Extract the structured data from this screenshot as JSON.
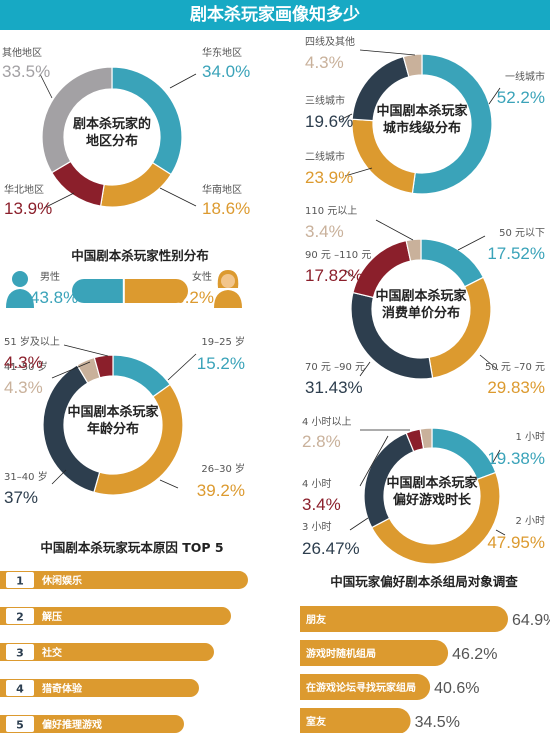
{
  "title": "剧本杀玩家画像知多少",
  "colors": {
    "teal": "#3aa3b9",
    "orange": "#dc9a2f",
    "navy": "#2d3e4e",
    "maroon": "#8b1f2b",
    "gray": "#a3a1a4",
    "beige": "#c9b19b",
    "bar": "#dc9a2f"
  },
  "chart_data": [
    {
      "type": "pie",
      "title": "剧本杀玩家的地区分布",
      "title_lines": [
        "剧本杀玩家的",
        "地区分布"
      ],
      "slices": [
        {
          "label": "华东地区",
          "pct": "34.0%",
          "value": 34.0,
          "color": "#3aa3b9"
        },
        {
          "label": "华南地区",
          "pct": "18.6%",
          "value": 18.6,
          "color": "#dc9a2f"
        },
        {
          "label": "华北地区",
          "pct": "13.9%",
          "value": 13.9,
          "color": "#8b1f2b"
        },
        {
          "label": "其他地区",
          "pct": "33.5%",
          "value": 33.5,
          "color": "#a3a1a4"
        }
      ]
    },
    {
      "type": "pie",
      "title": "中国剧本杀玩家城市线级分布",
      "title_lines": [
        "中国剧本杀玩家",
        "城市线级分布"
      ],
      "slices": [
        {
          "label": "一线城市",
          "pct": "52.2%",
          "value": 52.2,
          "color": "#3aa3b9"
        },
        {
          "label": "二线城市",
          "pct": "23.9%",
          "value": 23.9,
          "color": "#dc9a2f"
        },
        {
          "label": "三线城市",
          "pct": "19.6%",
          "value": 19.6,
          "color": "#2d3e4e"
        },
        {
          "label": "四线及其他",
          "pct": "4.3%",
          "value": 4.3,
          "color": "#c9b19b"
        }
      ]
    },
    {
      "type": "bar",
      "title": "中国剧本杀玩家性别分布",
      "slices": [
        {
          "label": "男性",
          "pct": "43.8%",
          "value": 43.8,
          "color": "#3aa3b9"
        },
        {
          "label": "女性",
          "pct": "56.2%",
          "value": 56.2,
          "color": "#dc9a2f"
        }
      ]
    },
    {
      "type": "pie",
      "title": "中国剧本杀玩家消费单价分布",
      "title_lines": [
        "中国剧本杀玩家",
        "消费单价分布"
      ],
      "slices": [
        {
          "label": "50 元以下",
          "pct": "17.52%",
          "value": 17.52,
          "color": "#3aa3b9"
        },
        {
          "label": "50 元 –70 元",
          "pct": "29.83%",
          "value": 29.83,
          "color": "#dc9a2f"
        },
        {
          "label": "70 元 –90 元",
          "pct": "31.43%",
          "value": 31.43,
          "color": "#2d3e4e"
        },
        {
          "label": "90 元 –110 元",
          "pct": "17.82%",
          "value": 17.82,
          "color": "#8b1f2b"
        },
        {
          "label": "110 元以上",
          "pct": "3.4%",
          "value": 3.4,
          "color": "#c9b19b"
        }
      ]
    },
    {
      "type": "pie",
      "title": "中国剧本杀玩家年龄分布",
      "title_lines": [
        "中国剧本杀玩家",
        "年龄分布"
      ],
      "slices": [
        {
          "label": "19–25 岁",
          "pct": "15.2%",
          "value": 15.2,
          "color": "#3aa3b9"
        },
        {
          "label": "26–30 岁",
          "pct": "39.2%",
          "value": 39.2,
          "color": "#dc9a2f"
        },
        {
          "label": "31–40 岁",
          "pct": "37%",
          "value": 37,
          "color": "#2d3e4e"
        },
        {
          "label": "41–50 岁",
          "pct": "4.3%",
          "value": 4.3,
          "color": "#c9b19b"
        },
        {
          "label": "51 岁及以上",
          "pct": "4.3%",
          "value": 4.3,
          "color": "#8b1f2b"
        }
      ]
    },
    {
      "type": "pie",
      "title": "中国剧本杀玩家偏好游戏时长",
      "title_lines": [
        "中国剧本杀玩家",
        "偏好游戏时长"
      ],
      "slices": [
        {
          "label": "1 小时",
          "pct": "19.38%",
          "value": 19.38,
          "color": "#3aa3b9"
        },
        {
          "label": "2 小时",
          "pct": "47.95%",
          "value": 47.95,
          "color": "#dc9a2f"
        },
        {
          "label": "3 小时",
          "pct": "26.47%",
          "value": 26.47,
          "color": "#2d3e4e"
        },
        {
          "label": "4 小时",
          "pct": "3.4%",
          "value": 3.4,
          "color": "#8b1f2b"
        },
        {
          "label": "4 小时以上",
          "pct": "2.8%",
          "value": 2.8,
          "color": "#c9b19b"
        }
      ]
    },
    {
      "type": "bar",
      "title": "中国剧本杀玩家玩本原因 TOP 5",
      "items": [
        {
          "rank": "1",
          "label": "休闲娱乐"
        },
        {
          "rank": "2",
          "label": "解压"
        },
        {
          "rank": "3",
          "label": "社交"
        },
        {
          "rank": "4",
          "label": "猎奇体验"
        },
        {
          "rank": "5",
          "label": "偏好推理游戏"
        }
      ]
    },
    {
      "type": "bar",
      "title": "中国玩家偏好剧本杀组局对象调查",
      "items": [
        {
          "label": "朋友",
          "pct": "64.9%",
          "value": 64.9
        },
        {
          "label": "游戏时随机组局",
          "pct": "46.2%",
          "value": 46.2
        },
        {
          "label": "在游戏论坛寻找玩家组局",
          "pct": "40.6%",
          "value": 40.6
        },
        {
          "label": "室友",
          "pct": "34.5%",
          "value": 34.5
        }
      ]
    }
  ]
}
